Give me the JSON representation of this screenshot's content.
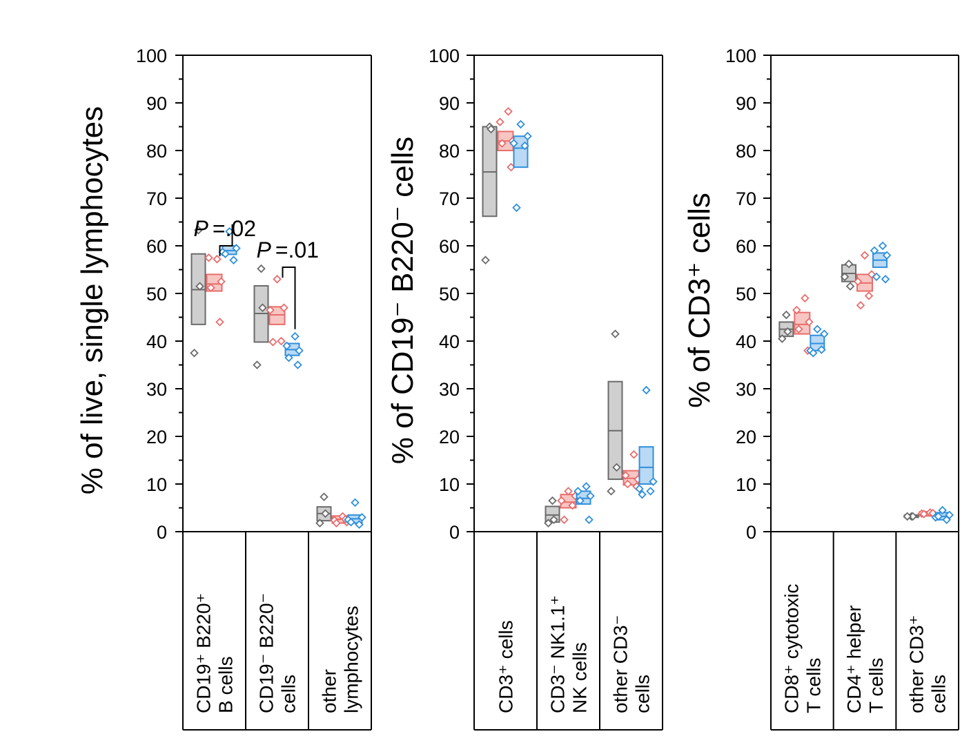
{
  "colors": {
    "group1": {
      "stroke": "#6a6a6a",
      "fill": "#cfcfcf"
    },
    "group2": {
      "stroke": "#e86d6d",
      "fill": "#f7c6c2"
    },
    "group3": {
      "stroke": "#2f8fdc",
      "fill": "#b9d9f4"
    }
  },
  "chart_data": [
    {
      "type": "box",
      "ylabel": "% of live, single lymphocytes",
      "ylim": [
        0,
        100
      ],
      "yticks": [
        "0",
        "10",
        "20",
        "30",
        "40",
        "50",
        "60",
        "70",
        "80",
        "90",
        "100"
      ],
      "categories": [
        {
          "lines": [
            "CD19⁺ B220⁺",
            "B cells"
          ]
        },
        {
          "lines": [
            "CD19⁻ B220⁻",
            "cells"
          ]
        },
        {
          "lines": [
            "other",
            "lymphocytes"
          ]
        }
      ],
      "groups": [
        [
          {
            "box": [
              43.5,
              58.3
            ],
            "median": 50.8,
            "points": [
              63.3,
              51.5,
              37.5
            ]
          },
          {
            "box": [
              50.5,
              54.0
            ],
            "median": 52.0,
            "points": [
              57.2,
              57.5,
              52.5,
              51.2,
              44.0
            ]
          },
          {
            "box": [
              58.2,
              60.0
            ],
            "median": 59.0,
            "points": [
              63.0,
              59.5,
              58.7,
              57.0,
              58.3
            ]
          }
        ],
        [
          {
            "box": [
              39.8,
              51.6
            ],
            "median": 45.8,
            "points": [
              55.2,
              47.0,
              35.0
            ]
          },
          {
            "box": [
              43.5,
              47.2
            ],
            "median": 45.5,
            "points": [
              53.0,
              47.0,
              46.5,
              40.0,
              39.8
            ]
          },
          {
            "box": [
              37.0,
              39.5
            ],
            "median": 38.2,
            "points": [
              41.0,
              39.0,
              38.0,
              36.5,
              35.0
            ]
          }
        ],
        [
          {
            "box": [
              2.3,
              5.2
            ],
            "median": 3.8,
            "points": [
              7.3,
              3.8,
              1.8
            ]
          },
          {
            "box": [
              1.8,
              3.3
            ],
            "median": 2.6,
            "points": [
              3.2,
              2.4,
              2.0,
              1.8,
              2.6
            ]
          },
          {
            "box": [
              1.8,
              3.5
            ],
            "median": 2.7,
            "points": [
              6.1,
              3.0,
              2.5,
              1.5,
              2.0
            ]
          }
        ]
      ],
      "pvalues": [
        {
          "text": "=.02",
          "category": 0
        },
        {
          "text": "=.01",
          "category": 1
        }
      ]
    },
    {
      "type": "box",
      "ylabel": "% of CD19⁻ B220⁻ cells",
      "ylim": [
        0,
        100
      ],
      "yticks": [
        "0",
        "10",
        "20",
        "30",
        "40",
        "50",
        "60",
        "70",
        "80",
        "90",
        "100"
      ],
      "categories": [
        {
          "lines": [
            "CD3⁺ cells"
          ]
        },
        {
          "lines": [
            "CD3⁻ NK1.1⁺",
            "NK cells"
          ]
        },
        {
          "lines": [
            "other CD3⁻",
            "cells"
          ]
        }
      ],
      "groups": [
        [
          {
            "box": [
              66.2,
              85.0
            ],
            "median": 75.5,
            "points": [
              85.0,
              84.5,
              57.0
            ]
          },
          {
            "box": [
              80.0,
              84.0
            ],
            "median": 82.0,
            "points": [
              88.2,
              86.0,
              82.0,
              81.5,
              76.5
            ]
          },
          {
            "box": [
              76.5,
              83.0
            ],
            "median": 80.5,
            "points": [
              85.5,
              83.0,
              81.5,
              81.0,
              68.0
            ]
          }
        ],
        [
          {
            "box": [
              2.0,
              5.3
            ],
            "median": 3.5,
            "points": [
              6.5,
              2.5,
              1.8
            ]
          },
          {
            "box": [
              5.0,
              7.8
            ],
            "median": 6.2,
            "points": [
              8.5,
              7.5,
              6.5,
              5.5,
              2.5
            ]
          },
          {
            "box": [
              5.8,
              8.5
            ],
            "median": 7.0,
            "points": [
              9.5,
              8.5,
              7.5,
              6.5,
              2.5
            ]
          }
        ],
        [
          {
            "box": [
              11.0,
              31.5
            ],
            "median": 21.2,
            "points": [
              41.5,
              13.5,
              8.5
            ]
          },
          {
            "box": [
              9.8,
              12.8
            ],
            "median": 11.2,
            "points": [
              16.2,
              11.8,
              11.0,
              10.0,
              9.5
            ]
          },
          {
            "box": [
              10.0,
              17.8
            ],
            "median": 13.5,
            "points": [
              29.7,
              10.5,
              9.0,
              8.5,
              7.8
            ]
          }
        ]
      ],
      "pvalues": []
    },
    {
      "type": "box",
      "ylabel": "% of CD3⁺ cells",
      "ylim": [
        0,
        100
      ],
      "yticks": [
        "0",
        "10",
        "20",
        "30",
        "40",
        "50",
        "60",
        "70",
        "80",
        "90",
        "100"
      ],
      "categories": [
        {
          "lines": [
            "CD8⁺ cytotoxic",
            "T cells"
          ]
        },
        {
          "lines": [
            "CD4⁺ helper",
            "T cells"
          ]
        },
        {
          "lines": [
            "other CD3⁺",
            "cells"
          ]
        }
      ],
      "groups": [
        [
          {
            "box": [
              41.0,
              44.0
            ],
            "median": 42.5,
            "points": [
              45.5,
              42.0,
              40.5
            ]
          },
          {
            "box": [
              41.5,
              46.0
            ],
            "median": 43.5,
            "points": [
              49.0,
              46.5,
              44.0,
              42.5,
              38.0
            ]
          },
          {
            "box": [
              38.0,
              41.2
            ],
            "median": 39.5,
            "points": [
              42.5,
              41.5,
              38.0,
              38.2,
              37.5
            ]
          }
        ],
        [
          {
            "box": [
              52.5,
              56.0
            ],
            "median": 54.2,
            "points": [
              56.2,
              51.5,
              53.5
            ]
          },
          {
            "box": [
              50.5,
              54.0
            ],
            "median": 52.2,
            "points": [
              58.0,
              54.0,
              52.5,
              49.5,
              47.5
            ]
          },
          {
            "box": [
              55.5,
              58.5
            ],
            "median": 57.0,
            "points": [
              60.0,
              59.0,
              58.0,
              53.5,
              53.0
            ]
          }
        ],
        [
          {
            "box": [
              3.0,
              3.5
            ],
            "median": 3.2,
            "points": [
              3.2,
              3.2,
              3.2
            ]
          },
          {
            "box": [
              3.3,
              4.2
            ],
            "median": 3.8,
            "points": [
              4.0,
              3.8,
              3.6,
              3.7,
              3.9
            ]
          },
          {
            "box": [
              2.5,
              4.0
            ],
            "median": 3.2,
            "points": [
              4.5,
              3.5,
              3.0,
              2.5,
              3.2
            ]
          }
        ]
      ],
      "pvalues": []
    }
  ]
}
